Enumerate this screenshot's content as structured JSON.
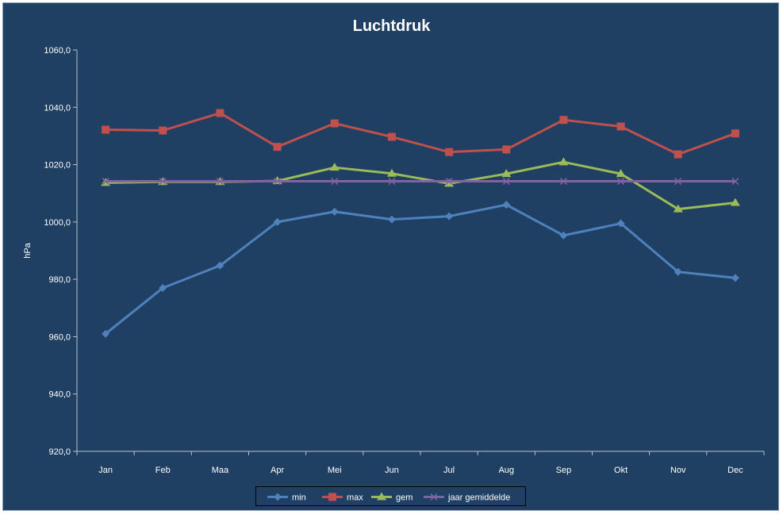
{
  "chart_data": {
    "type": "line",
    "title": "Luchtdruk",
    "xlabel": "",
    "ylabel": "hPa",
    "categories": [
      "Jan",
      "Feb",
      "Maa",
      "Apr",
      "Mei",
      "Jun",
      "Jul",
      "Aug",
      "Sep",
      "Okt",
      "Nov",
      "Dec"
    ],
    "ylim": [
      920,
      1060
    ],
    "yticks": [
      920,
      940,
      960,
      980,
      1000,
      1020,
      1040,
      1060
    ],
    "ytick_labels": [
      "920,0",
      "940,0",
      "960,0",
      "980,0",
      "1000,0",
      "1020,0",
      "1040,0",
      "1060,0"
    ],
    "grid": false,
    "legend_position": "bottom",
    "series": [
      {
        "name": "min",
        "color": "#4f81bd",
        "marker": "diamond",
        "values": [
          961.0,
          977.0,
          984.8,
          1000.0,
          1003.6,
          1000.9,
          1002.0,
          1006.0,
          995.3,
          999.5,
          982.6,
          980.5
        ]
      },
      {
        "name": "max",
        "color": "#c0504d",
        "marker": "square",
        "values": [
          1032.2,
          1031.9,
          1038.0,
          1026.2,
          1034.4,
          1029.7,
          1024.4,
          1025.3,
          1035.6,
          1033.3,
          1023.6,
          1030.9
        ]
      },
      {
        "name": "gem",
        "color": "#9bbb59",
        "marker": "triangle",
        "values": [
          1013.7,
          1014.0,
          1014.0,
          1014.3,
          1019.0,
          1016.9,
          1013.4,
          1016.8,
          1020.9,
          1016.8,
          1004.5,
          1006.7
        ]
      },
      {
        "name": "jaar gemiddelde",
        "color": "#8064a2",
        "marker": "x",
        "values": [
          1014.2,
          1014.2,
          1014.2,
          1014.2,
          1014.2,
          1014.2,
          1014.2,
          1014.2,
          1014.2,
          1014.2,
          1014.2,
          1014.2
        ]
      }
    ]
  }
}
